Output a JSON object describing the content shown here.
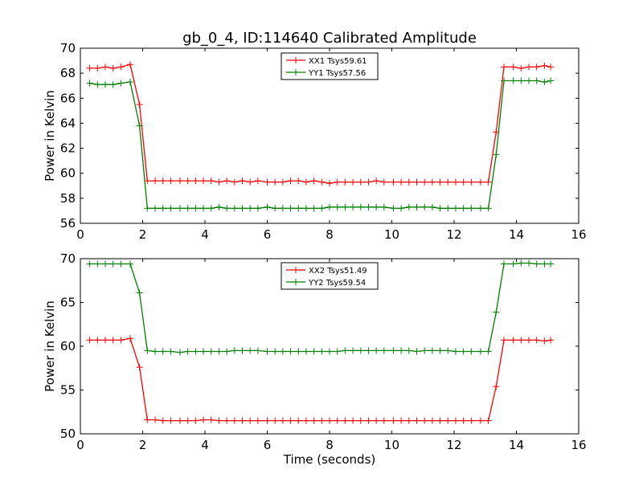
{
  "figure": {
    "title": "gb_0_4, ID:114640 Calibrated Amplitude"
  },
  "chart_data": [
    {
      "type": "line",
      "title": "gb_0_4, ID:114640 Calibrated Amplitude",
      "xlabel": "",
      "ylabel": "Power in Kelvin",
      "xlim": [
        0,
        16
      ],
      "ylim": [
        56,
        70
      ],
      "xticks": [
        0,
        2,
        4,
        6,
        8,
        10,
        12,
        14,
        16
      ],
      "yticks": [
        56,
        58,
        60,
        62,
        64,
        66,
        68,
        70
      ],
      "grid": false,
      "legend_position": "top-center",
      "x": [
        0.3,
        0.55,
        0.8,
        1.05,
        1.3,
        1.6,
        1.9,
        2.15,
        2.4,
        2.65,
        2.9,
        3.2,
        3.45,
        3.7,
        3.95,
        4.2,
        4.45,
        4.7,
        4.95,
        5.2,
        5.45,
        5.7,
        6.0,
        6.25,
        6.5,
        6.75,
        7.0,
        7.25,
        7.5,
        7.75,
        8.0,
        8.25,
        8.5,
        8.75,
        9.0,
        9.25,
        9.5,
        9.75,
        10.05,
        10.3,
        10.55,
        10.8,
        11.05,
        11.3,
        11.55,
        11.8,
        12.05,
        12.3,
        12.55,
        12.85,
        13.1,
        13.35,
        13.6,
        13.9,
        14.15,
        14.4,
        14.65,
        14.9,
        15.1
      ],
      "series": [
        {
          "name": "XX1 Tsys59.61",
          "color": "#ff0000",
          "values": [
            68.4,
            68.4,
            68.5,
            68.4,
            68.5,
            68.7,
            65.5,
            59.4,
            59.4,
            59.4,
            59.4,
            59.4,
            59.4,
            59.4,
            59.4,
            59.4,
            59.3,
            59.4,
            59.3,
            59.4,
            59.3,
            59.4,
            59.3,
            59.3,
            59.3,
            59.4,
            59.4,
            59.3,
            59.4,
            59.3,
            59.2,
            59.3,
            59.3,
            59.3,
            59.3,
            59.3,
            59.4,
            59.3,
            59.3,
            59.3,
            59.3,
            59.3,
            59.3,
            59.3,
            59.3,
            59.3,
            59.3,
            59.3,
            59.3,
            59.3,
            59.3,
            63.3,
            68.5,
            68.5,
            68.4,
            68.5,
            68.5,
            68.6,
            68.5
          ]
        },
        {
          "name": "YY1 Tsys57.56",
          "color": "#008000",
          "values": [
            67.2,
            67.1,
            67.1,
            67.1,
            67.2,
            67.3,
            63.8,
            57.2,
            57.2,
            57.2,
            57.2,
            57.2,
            57.2,
            57.2,
            57.2,
            57.2,
            57.3,
            57.2,
            57.2,
            57.2,
            57.2,
            57.2,
            57.3,
            57.2,
            57.2,
            57.2,
            57.2,
            57.2,
            57.2,
            57.2,
            57.3,
            57.3,
            57.3,
            57.3,
            57.3,
            57.3,
            57.3,
            57.3,
            57.2,
            57.2,
            57.3,
            57.3,
            57.3,
            57.3,
            57.2,
            57.2,
            57.2,
            57.2,
            57.2,
            57.2,
            57.2,
            61.5,
            67.4,
            67.4,
            67.4,
            67.4,
            67.4,
            67.3,
            67.4
          ]
        }
      ]
    },
    {
      "type": "line",
      "title": "",
      "xlabel": "Time (seconds)",
      "ylabel": "Power in Kelvin",
      "xlim": [
        0,
        16
      ],
      "ylim": [
        50,
        70
      ],
      "xticks": [
        0,
        2,
        4,
        6,
        8,
        10,
        12,
        14,
        16
      ],
      "yticks": [
        50,
        55,
        60,
        65,
        70
      ],
      "grid": false,
      "legend_position": "top-center",
      "x": [
        0.3,
        0.55,
        0.8,
        1.05,
        1.3,
        1.6,
        1.9,
        2.15,
        2.4,
        2.65,
        2.9,
        3.2,
        3.45,
        3.7,
        3.95,
        4.2,
        4.45,
        4.7,
        4.95,
        5.2,
        5.45,
        5.7,
        6.0,
        6.25,
        6.5,
        6.75,
        7.0,
        7.25,
        7.5,
        7.75,
        8.0,
        8.25,
        8.5,
        8.75,
        9.0,
        9.25,
        9.5,
        9.75,
        10.05,
        10.3,
        10.55,
        10.8,
        11.05,
        11.3,
        11.55,
        11.8,
        12.05,
        12.3,
        12.55,
        12.85,
        13.1,
        13.35,
        13.6,
        13.9,
        14.15,
        14.4,
        14.65,
        14.9,
        15.1
      ],
      "series": [
        {
          "name": "XX2 Tsys51.49",
          "color": "#ff0000",
          "values": [
            60.7,
            60.7,
            60.7,
            60.7,
            60.7,
            60.9,
            57.6,
            51.6,
            51.6,
            51.5,
            51.5,
            51.5,
            51.5,
            51.5,
            51.6,
            51.6,
            51.5,
            51.5,
            51.5,
            51.5,
            51.5,
            51.5,
            51.5,
            51.5,
            51.5,
            51.5,
            51.5,
            51.5,
            51.5,
            51.5,
            51.5,
            51.5,
            51.5,
            51.5,
            51.5,
            51.5,
            51.5,
            51.5,
            51.5,
            51.5,
            51.5,
            51.5,
            51.5,
            51.5,
            51.5,
            51.5,
            51.5,
            51.5,
            51.5,
            51.5,
            51.5,
            55.4,
            60.7,
            60.7,
            60.7,
            60.7,
            60.7,
            60.6,
            60.7
          ]
        },
        {
          "name": "YY2 Tsys59.54",
          "color": "#008000",
          "values": [
            69.4,
            69.4,
            69.4,
            69.4,
            69.4,
            69.4,
            66.1,
            59.5,
            59.4,
            59.4,
            59.4,
            59.3,
            59.4,
            59.4,
            59.4,
            59.4,
            59.4,
            59.4,
            59.5,
            59.5,
            59.5,
            59.5,
            59.4,
            59.4,
            59.4,
            59.4,
            59.4,
            59.4,
            59.4,
            59.4,
            59.4,
            59.4,
            59.5,
            59.5,
            59.5,
            59.5,
            59.5,
            59.5,
            59.5,
            59.5,
            59.5,
            59.4,
            59.5,
            59.5,
            59.5,
            59.5,
            59.4,
            59.4,
            59.4,
            59.4,
            59.4,
            63.9,
            69.4,
            69.4,
            69.5,
            69.5,
            69.4,
            69.4,
            69.4
          ]
        }
      ]
    }
  ]
}
